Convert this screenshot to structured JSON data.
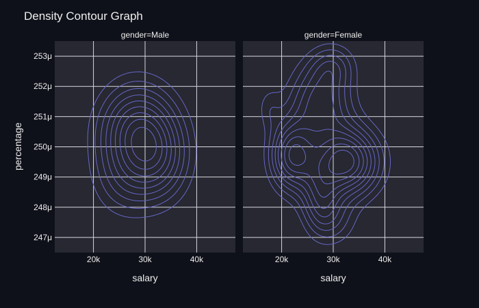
{
  "theme": {
    "background": "#0f111a",
    "plot_background": "#272831",
    "grid_color": "#d8d8e0",
    "text_color": "#eeeeee",
    "contour_color": "#6766c8"
  },
  "chart_data": {
    "type": "contour",
    "title": "Density Contour Graph",
    "xlabel": "salary",
    "ylabel": "percentage",
    "x_tick_values": [
      20000,
      30000,
      40000
    ],
    "x_tick_labels": [
      "20k",
      "30k",
      "40k"
    ],
    "y_tick_values": [
      0.000247,
      0.000248,
      0.000249,
      0.00025,
      0.000251,
      0.000252,
      0.000253
    ],
    "y_tick_labels": [
      "247μ",
      "248μ",
      "249μ",
      "250μ",
      "251μ",
      "252μ",
      "253μ"
    ],
    "xlim": [
      12500,
      47500
    ],
    "ylim": [
      0.0002465,
      0.0002535
    ],
    "grid": true,
    "facets": [
      {
        "label": "gender=Male",
        "kernels": [
          {
            "x": 28500,
            "y": 0.0002505,
            "sx": 5200,
            "sy": 1.1e-06,
            "w": 1.0
          },
          {
            "x": 33000,
            "y": 0.0002495,
            "sx": 4200,
            "sy": 1e-06,
            "w": 0.5
          },
          {
            "x": 26000,
            "y": 0.0002488,
            "sx": 4500,
            "sy": 9e-07,
            "w": 0.3
          }
        ]
      },
      {
        "label": "gender=Female",
        "kernels": [
          {
            "x": 32500,
            "y": 0.0002495,
            "sx": 4500,
            "sy": 8e-07,
            "w": 1.0
          },
          {
            "x": 22000,
            "y": 0.0002497,
            "sx": 3000,
            "sy": 8e-07,
            "w": 0.8
          },
          {
            "x": 27500,
            "y": 0.0002515,
            "sx": 4200,
            "sy": 9e-07,
            "w": 0.6
          },
          {
            "x": 27500,
            "y": 0.0002482,
            "sx": 2600,
            "sy": 8e-07,
            "w": 0.5
          },
          {
            "x": 30000,
            "y": 0.0002527,
            "sx": 3000,
            "sy": 5e-07,
            "w": 0.3
          },
          {
            "x": 31000,
            "y": 0.0002475,
            "sx": 3000,
            "sy": 6e-07,
            "w": 0.2
          },
          {
            "x": 17500,
            "y": 0.0002513,
            "sx": 1700,
            "sy": 5e-07,
            "w": 0.18
          }
        ]
      }
    ]
  }
}
